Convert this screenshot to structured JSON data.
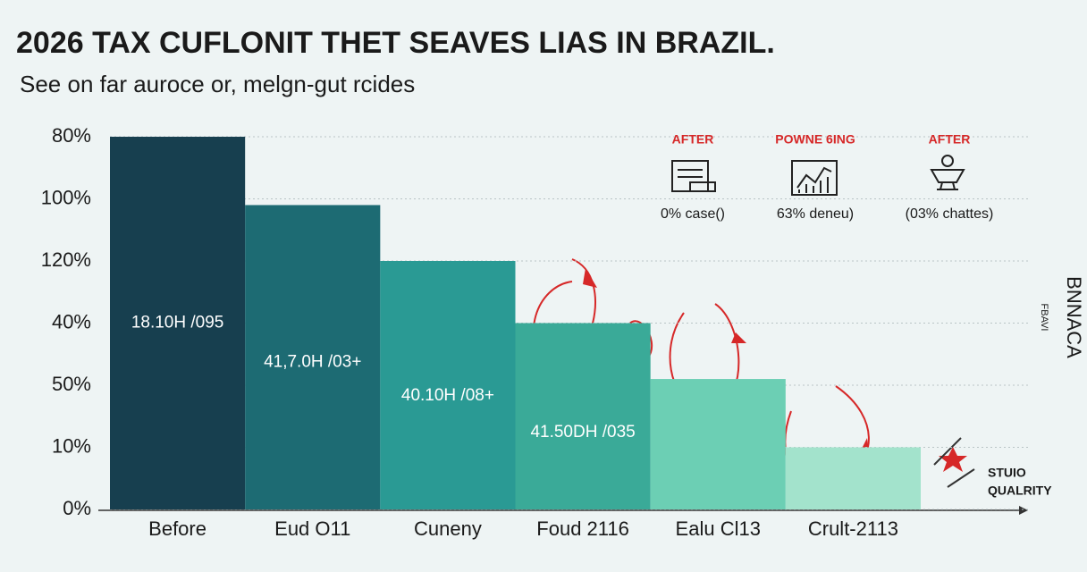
{
  "chart_data": {
    "type": "bar",
    "title": "2026 TAX CUFLONIT THET SEAVES LIAS IN BRAZIL.",
    "subtitle": "See on far auroce or, melgn-gut rcides",
    "categories": [
      "Before",
      "Eud O11",
      "Cuneny",
      "Foud 2116",
      "Ealu Cl13",
      "Crult-2113"
    ],
    "values": [
      6,
      4.9,
      4,
      3,
      2.1,
      1
    ],
    "colors": [
      "#173f4f",
      "#1d6b73",
      "#2a9a94",
      "#3aaa98",
      "#6ccfb4",
      "#a3e3cc"
    ],
    "bar_labels": [
      "18.10H /095",
      "41,7.0H /03+",
      "40.10H /08+",
      "41.50DH /035",
      null,
      null
    ],
    "ylim": [
      0,
      6
    ],
    "yticks": [
      {
        "value": 0,
        "label": "0%"
      },
      {
        "value": 1,
        "label": "10%"
      },
      {
        "value": 2,
        "label": "50%"
      },
      {
        "value": 3,
        "label": "40%"
      },
      {
        "value": 4,
        "label": "120%"
      },
      {
        "value": 5,
        "label": "100%"
      },
      {
        "value": 6,
        "label": "80%"
      }
    ],
    "grid": true,
    "legend_panel": [
      {
        "heading": "AFTER",
        "caption": "0% case()"
      },
      {
        "heading": "POWNE 6ING",
        "caption": "63% deneu)"
      },
      {
        "heading": "AFTER",
        "caption": "(03% chattes)"
      }
    ],
    "side_labels": [
      "BNNACA",
      "FBAVI"
    ],
    "badge": [
      "STUIO",
      "QUALRITY"
    ]
  }
}
